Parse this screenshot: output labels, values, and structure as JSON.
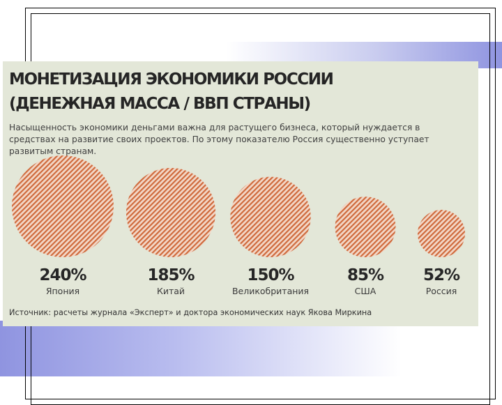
{
  "infographic": {
    "title_line1": "МОНЕТИЗАЦИЯ ЭКОНОМИКИ РОССИИ",
    "title_line2": "(ДЕНЕЖНАЯ МАССА / ВВП СТРАНЫ)",
    "subtitle": "Насыщенность экономики деньгами важна для растущего бизнеса, который нуждается в средствах на развитие своих проектов. По этому показателю Россия существенно уступает развитым странам.",
    "source": "Источник: расчеты журнала «Эксперт» и доктора экономических наук Якова Миркина"
  },
  "chart_data": {
    "type": "bubble",
    "title": "МОНЕТИЗАЦИЯ ЭКОНОМИКИ РОССИИ (ДЕНЕЖНАЯ МАССА / ВВП СТРАНЫ)",
    "unit": "%",
    "categories": [
      "Япония",
      "Китай",
      "Великобритания",
      "США",
      "Россия"
    ],
    "values": [
      240,
      185,
      150,
      85,
      52
    ],
    "labels": [
      "240%",
      "185%",
      "150%",
      "85%",
      "52%"
    ]
  },
  "colors": {
    "panel_bg": "#e3e7d8",
    "bubble_fill": "#f3d8c8",
    "bubble_hatch": "#cf6a3c",
    "text": "#262626"
  }
}
